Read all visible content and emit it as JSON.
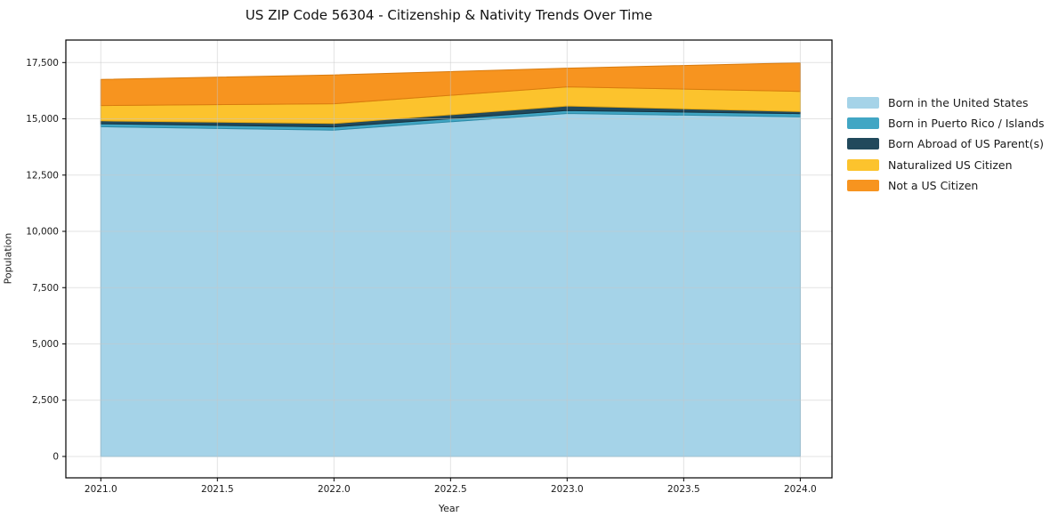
{
  "chart_data": {
    "type": "area",
    "stacked": true,
    "title": "US ZIP Code 56304 - Citizenship & Nativity Trends Over Time",
    "xlabel": "Year",
    "ylabel": "Population",
    "x": [
      2021,
      2022,
      2023,
      2024
    ],
    "series": [
      {
        "name": "Born in the United States",
        "color": "#a5d3e8",
        "edge": "#7ab8d6",
        "values": [
          14650,
          14500,
          15240,
          15090
        ]
      },
      {
        "name": "Born in Puerto Rico / Islands",
        "color": "#41a6c4",
        "edge": "#2c8aa6",
        "values": [
          130,
          140,
          130,
          140
        ]
      },
      {
        "name": "Born Abroad of US Parent(s)",
        "color": "#21495c",
        "edge": "#16323f",
        "values": [
          130,
          150,
          200,
          90
        ]
      },
      {
        "name": "Naturalized US Citizen",
        "color": "#fcc32d",
        "edge": "#e2a714",
        "values": [
          680,
          880,
          850,
          900
        ]
      },
      {
        "name": "Not a US Citizen",
        "color": "#f7941f",
        "edge": "#d97b0e",
        "values": [
          1160,
          1280,
          830,
          1270
        ]
      }
    ],
    "x_ticks": {
      "values": [
        2021.0,
        2021.5,
        2022.0,
        2022.5,
        2023.0,
        2023.5,
        2024.0
      ],
      "labels": [
        "2021.0",
        "2021.5",
        "2022.0",
        "2022.5",
        "2023.0",
        "2023.5",
        "2024.0"
      ]
    },
    "y_ticks": {
      "values": [
        0,
        2500,
        5000,
        7500,
        10000,
        12500,
        15000,
        17500
      ],
      "labels": [
        "0",
        "2,500",
        "5,000",
        "7,500",
        "10,000",
        "12,500",
        "15,000",
        "17,500"
      ]
    },
    "xlim": [
      2020.85,
      2024.136
    ],
    "ylim": [
      -950,
      18500
    ],
    "grid": true,
    "legend_position": "right"
  },
  "colors": {
    "background": "#ffffff",
    "grid": "#c8c8c8",
    "spine": "#000000",
    "text": "#1a1a1a"
  }
}
